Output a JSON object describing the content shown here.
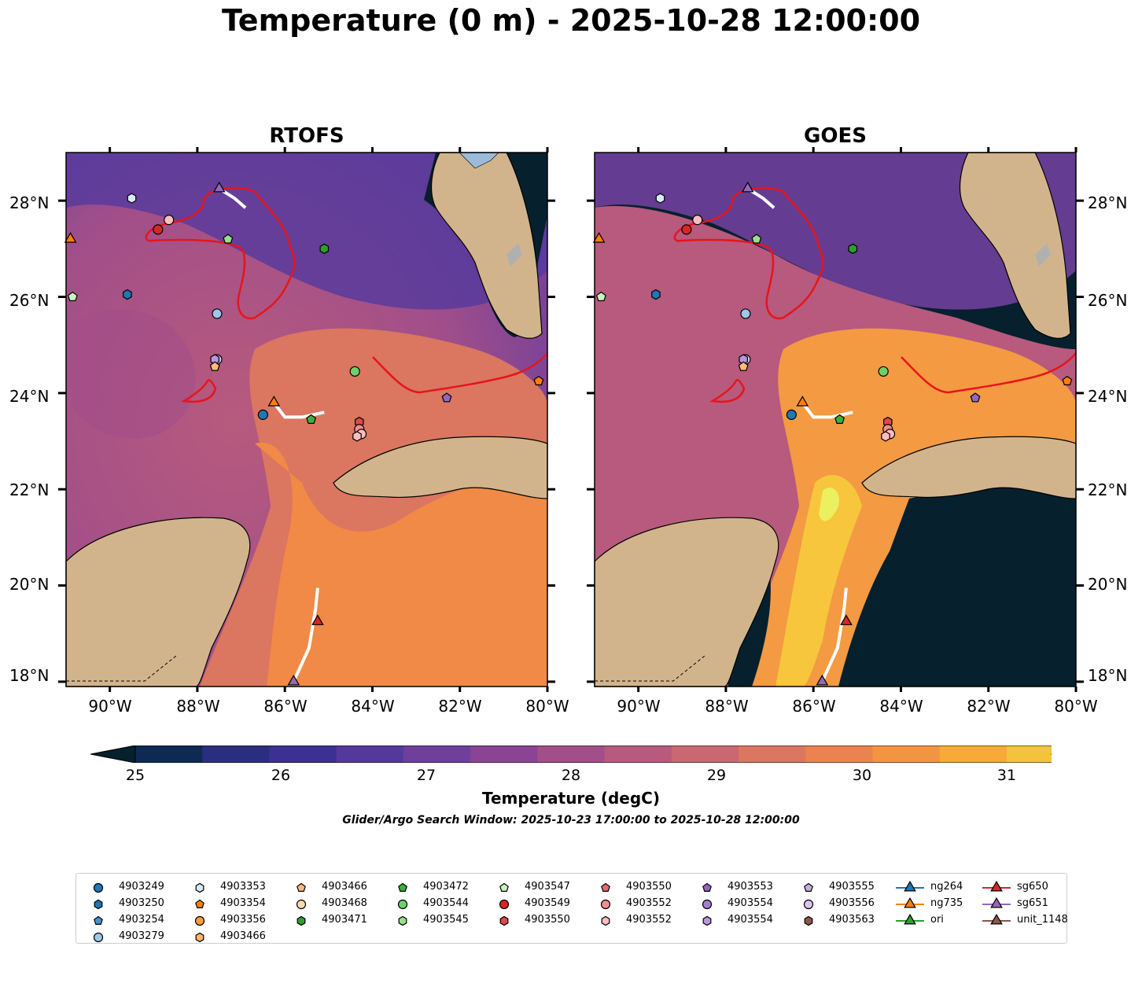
{
  "title": "Temperature (0 m) - 2025-10-28 12:00:00",
  "panels": [
    {
      "title": "RTOFS"
    },
    {
      "title": "GOES"
    }
  ],
  "lat_labels": [
    "28°N",
    "26°N",
    "24°N",
    "22°N",
    "20°N",
    "18°N"
  ],
  "lon_labels": [
    "90°W",
    "88°W",
    "86°W",
    "84°W",
    "82°W",
    "80°W"
  ],
  "colorbar": {
    "label": "Temperature (degC)",
    "ticks": [
      "25",
      "26",
      "27",
      "28",
      "29",
      "30",
      "31"
    ],
    "colors": [
      "#06202d",
      "#0f2a52",
      "#2b2e7e",
      "#3c3192",
      "#54399d",
      "#6f3f9c",
      "#894494",
      "#a24f89",
      "#b75a7d",
      "#c96870",
      "#db7660",
      "#ea8350",
      "#f39540",
      "#f7aa36",
      "#f3c33c",
      "#eaf060"
    ]
  },
  "search_window": "Glider/Argo Search Window: 2025-10-23 17:00:00 to 2025-10-28 12:00:00",
  "legend": {
    "columns": [
      [
        {
          "label": "4903249",
          "shape": "circle",
          "color": "#1f77b4"
        },
        {
          "label": "4903250",
          "shape": "hexagon",
          "color": "#1f77b4"
        },
        {
          "label": "4903254",
          "shape": "pentagon",
          "color": "#4a90c8"
        },
        {
          "label": "4903279",
          "shape": "circle",
          "color": "#9ec7e8"
        }
      ],
      [
        {
          "label": "4903353",
          "shape": "hexagon",
          "color": "#d6eaff"
        },
        {
          "label": "4903354",
          "shape": "pentagon",
          "color": "#ff7f0e"
        },
        {
          "label": "4903356",
          "shape": "circle",
          "color": "#ff9d3a"
        },
        {
          "label": "4903466",
          "shape": "hexagon",
          "color": "#ffb56b"
        }
      ],
      [
        {
          "label": "4903466",
          "shape": "pentagon",
          "color": "#ffbb78"
        },
        {
          "label": "4903468",
          "shape": "circle",
          "color": "#ffd8b0"
        },
        {
          "label": "4903471",
          "shape": "hexagon",
          "color": "#2ca02c"
        }
      ],
      [
        {
          "label": "4903472",
          "shape": "pentagon",
          "color": "#3cb03c"
        },
        {
          "label": "4903544",
          "shape": "circle",
          "color": "#6cd16c"
        },
        {
          "label": "4903545",
          "shape": "hexagon",
          "color": "#98df8a"
        }
      ],
      [
        {
          "label": "4903547",
          "shape": "pentagon",
          "color": "#c8f5bf"
        },
        {
          "label": "4903549",
          "shape": "circle",
          "color": "#d62728"
        },
        {
          "label": "4903550",
          "shape": "hexagon",
          "color": "#e0484a"
        }
      ],
      [
        {
          "label": "4903550",
          "shape": "pentagon",
          "color": "#e8676a"
        },
        {
          "label": "4903552",
          "shape": "circle",
          "color": "#f08c8c"
        },
        {
          "label": "4903552",
          "shape": "hexagon",
          "color": "#ffbdbd"
        }
      ],
      [
        {
          "label": "4903553",
          "shape": "pentagon",
          "color": "#9467bd"
        },
        {
          "label": "4903554",
          "shape": "circle",
          "color": "#a67fd0"
        },
        {
          "label": "4903554",
          "shape": "hexagon",
          "color": "#b895dc"
        }
      ],
      [
        {
          "label": "4903555",
          "shape": "pentagon",
          "color": "#c5b0d5"
        },
        {
          "label": "4903556",
          "shape": "circle",
          "color": "#dcc5f0"
        },
        {
          "label": "4903563",
          "shape": "hexagon",
          "color": "#8c564b"
        }
      ],
      [
        {
          "label": "ng264",
          "shape": "triangle",
          "color": "#1f77b4",
          "line": true
        },
        {
          "label": "ng735",
          "shape": "triangle",
          "color": "#ff7f0e",
          "line": true
        },
        {
          "label": "ori",
          "shape": "triangle",
          "color": "#2ca02c",
          "line": true
        }
      ],
      [
        {
          "label": "sg650",
          "shape": "triangle",
          "color": "#d62728",
          "line": true
        },
        {
          "label": "sg651",
          "shape": "triangle",
          "color": "#9467bd",
          "line": true
        },
        {
          "label": "unit_1148",
          "shape": "triangle",
          "color": "#8c564b",
          "line": true
        }
      ]
    ]
  },
  "markers": [
    {
      "shape": "hexagon",
      "color": "#d6eaff",
      "lon": -89.5,
      "lat": 28.05
    },
    {
      "shape": "circle",
      "color": "#ffbdbd",
      "lon": -88.65,
      "lat": 27.6
    },
    {
      "shape": "circle",
      "color": "#d62728",
      "lon": -88.9,
      "lat": 27.4
    },
    {
      "shape": "triangle",
      "color": "#ff7f0e",
      "lon": -90.9,
      "lat": 27.2
    },
    {
      "shape": "triangle",
      "color": "#9467bd",
      "lon": -87.5,
      "lat": 28.25
    },
    {
      "shape": "pentagon",
      "color": "#98df8a",
      "lon": -87.3,
      "lat": 27.2
    },
    {
      "shape": "hexagon",
      "color": "#2ca02c",
      "lon": -85.1,
      "lat": 27.0
    },
    {
      "shape": "pentagon",
      "color": "#c8f5bf",
      "lon": -90.85,
      "lat": 26.0
    },
    {
      "shape": "hexagon",
      "color": "#1f77b4",
      "lon": -89.6,
      "lat": 26.05
    },
    {
      "shape": "circle",
      "color": "#9ec7e8",
      "lon": -87.55,
      "lat": 25.65
    },
    {
      "shape": "circle",
      "color": "#dcc5f0",
      "lon": -87.55,
      "lat": 24.7
    },
    {
      "shape": "hexagon",
      "color": "#b895dc",
      "lon": -87.6,
      "lat": 24.7
    },
    {
      "shape": "pentagon",
      "color": "#ffbb78",
      "lon": -87.6,
      "lat": 24.55
    },
    {
      "shape": "circle",
      "color": "#6cd16c",
      "lon": -84.4,
      "lat": 24.45
    },
    {
      "shape": "pentagon",
      "color": "#9467bd",
      "lon": -82.3,
      "lat": 23.9
    },
    {
      "shape": "pentagon",
      "color": "#ff7f0e",
      "lon": -80.2,
      "lat": 24.25
    },
    {
      "shape": "triangle",
      "color": "#ff7f0e",
      "lon": -86.25,
      "lat": 23.8
    },
    {
      "shape": "circle",
      "color": "#1f77b4",
      "lon": -86.5,
      "lat": 23.55
    },
    {
      "shape": "pentagon",
      "color": "#3cb03c",
      "lon": -85.4,
      "lat": 23.45
    },
    {
      "shape": "hexagon",
      "color": "#e0484a",
      "lon": -84.3,
      "lat": 23.4
    },
    {
      "shape": "circle",
      "color": "#f08c8c",
      "lon": -84.3,
      "lat": 23.25
    },
    {
      "shape": "circle",
      "color": "#ffbdbd",
      "lon": -84.25,
      "lat": 23.15
    },
    {
      "shape": "hexagon",
      "color": "#ffbdbd",
      "lon": -84.35,
      "lat": 23.1
    },
    {
      "shape": "triangle",
      "color": "#d62728",
      "lon": -85.25,
      "lat": 19.25
    },
    {
      "shape": "triangle",
      "color": "#9467bd",
      "lon": -85.8,
      "lat": 18.0
    }
  ],
  "glider_tracks": [
    [
      [
        -87.5,
        28.25
      ],
      [
        -87.15,
        28.05
      ],
      [
        -86.9,
        27.85
      ]
    ],
    [
      [
        -86.25,
        23.8
      ],
      [
        -86.0,
        23.5
      ],
      [
        -85.6,
        23.5
      ],
      [
        -85.1,
        23.6
      ]
    ],
    [
      [
        -85.25,
        19.95
      ],
      [
        -85.3,
        19.5
      ],
      [
        -85.45,
        18.7
      ],
      [
        -85.7,
        18.2
      ],
      [
        -85.8,
        18.0
      ]
    ]
  ]
}
